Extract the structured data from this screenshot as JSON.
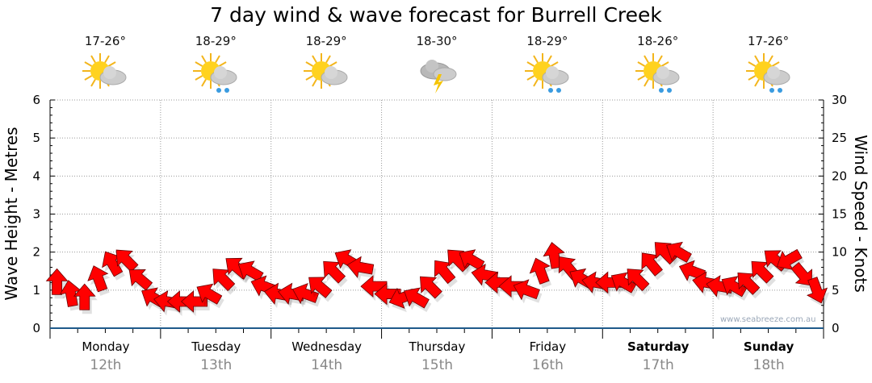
{
  "chart_data": {
    "type": "scatter",
    "title": "7 day wind & wave forecast for Burrell Creek",
    "ylabel": "Wave Height - Metres",
    "y2label": "Wind Speed - Knots",
    "ylim": [
      0,
      6
    ],
    "y2lim": [
      0,
      30
    ],
    "yticks": [
      "0",
      "1",
      "2",
      "3",
      "4",
      "5",
      "6"
    ],
    "y2ticks": [
      "0",
      "5",
      "10",
      "15",
      "20",
      "25",
      "30"
    ],
    "grid": true,
    "days": [
      {
        "name": "Monday",
        "date": "12th",
        "temp": "17-26°",
        "icon": "partly-cloudy-icon",
        "bold": false
      },
      {
        "name": "Tuesday",
        "date": "13th",
        "temp": "18-29°",
        "icon": "shower-icon",
        "bold": false
      },
      {
        "name": "Wednesday",
        "date": "14th",
        "temp": "18-29°",
        "icon": "partly-cloudy-icon",
        "bold": false
      },
      {
        "name": "Thursday",
        "date": "15th",
        "temp": "18-30°",
        "icon": "thunderstorm-icon",
        "bold": false
      },
      {
        "name": "Friday",
        "date": "16th",
        "temp": "18-29°",
        "icon": "shower-icon",
        "bold": false
      },
      {
        "name": "Saturday",
        "date": "17th",
        "temp": "18-26°",
        "icon": "shower-icon",
        "bold": true
      },
      {
        "name": "Sunday",
        "date": "18th",
        "temp": "17-26°",
        "icon": "shower-icon",
        "bold": true
      }
    ],
    "series": [
      {
        "name": "Wave height (m)",
        "values": [
          1.2,
          0.9,
          0.8,
          1.3,
          1.7,
          1.8,
          1.3,
          0.8,
          0.7,
          0.7,
          0.7,
          0.9,
          1.3,
          1.6,
          1.5,
          1.1,
          0.9,
          0.9,
          0.9,
          1.1,
          1.5,
          1.8,
          1.6,
          1.1,
          0.9,
          0.8,
          0.8,
          1.1,
          1.5,
          1.8,
          1.8,
          1.4,
          1.2,
          1.1,
          1.0,
          1.5,
          1.9,
          1.6,
          1.3,
          1.2,
          1.2,
          1.2,
          1.3,
          1.7,
          2.0,
          2.0,
          1.5,
          1.2,
          1.1,
          1.1,
          1.2,
          1.5,
          1.8,
          1.8,
          1.4,
          1.0
        ]
      },
      {
        "name": "Wind direction (deg, arrow heading)",
        "values": [
          0,
          -10,
          0,
          -20,
          -30,
          -45,
          -50,
          -60,
          -80,
          -90,
          -90,
          -60,
          -45,
          -50,
          -60,
          -70,
          -80,
          -80,
          -70,
          -50,
          -45,
          -60,
          -80,
          -90,
          -90,
          -110,
          -60,
          -45,
          -40,
          -45,
          -60,
          -80,
          -90,
          -90,
          -70,
          -20,
          -10,
          -40,
          -60,
          -80,
          -90,
          -60,
          -45,
          -40,
          -45,
          -60,
          -70,
          -80,
          -80,
          -60,
          -45,
          -45,
          -50,
          -120,
          140,
          160
        ]
      }
    ],
    "colors": {
      "arrow": "#ff0000",
      "arrow_stroke": "#6b0000",
      "x_axis": "#1f5a8a"
    }
  },
  "watermark": "www.seabreeze.com.au"
}
